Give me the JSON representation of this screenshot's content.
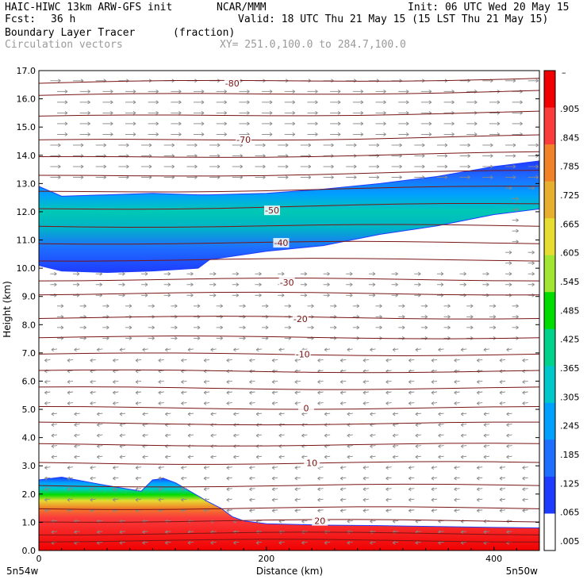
{
  "header": {
    "title_left": "HAIC-HIWC 13km ARW-GFS init",
    "org": "NCAR/MMM",
    "init": "Init: 06 UTC Wed 20 May 15",
    "fcst_label": "Fcst:",
    "fcst_value": "36 h",
    "valid": "Valid: 18 UTC Thu 21 May 15 (15 LST Thu 21 May 15)",
    "field1": "Boundary Layer Tracer",
    "field1_units": "(fraction)",
    "field2": "Circulation vectors",
    "xy": "XY= 251.0,100.0 to 284.7,100.0"
  },
  "chart_data": {
    "type": "heatmap",
    "xlabel": "Distance (km)",
    "ylabel": "Height (km)",
    "xlim": [
      0,
      440
    ],
    "ylim": [
      0,
      17
    ],
    "x_ticks": [
      0,
      200,
      400
    ],
    "y_ticks": [
      "0.0",
      "1.0",
      "2.0",
      "3.0",
      "4.0",
      "5.0",
      "6.0",
      "7.0",
      "8.0",
      "9.0",
      "10.0",
      "11.0",
      "12.0",
      "13.0",
      "14.0",
      "15.0",
      "16.0",
      "17.0"
    ],
    "x_endpoints": [
      "5n54w",
      "5n50w"
    ],
    "colorbar": {
      "labels": [
        ".005",
        ".065",
        ".125",
        ".185",
        ".245",
        ".305",
        ".365",
        ".425",
        ".485",
        ".545",
        ".605",
        ".665",
        ".725",
        ".785",
        ".845",
        ".905"
      ],
      "top_label": "–",
      "colors": [
        "#ffffff",
        "#1e3cff",
        "#1e6eff",
        "#00a0ff",
        "#00c8c8",
        "#00d28c",
        "#00dc00",
        "#a0e632",
        "#e6dc32",
        "#e6af2d",
        "#f08228",
        "#fa3c3c",
        "#f00000"
      ]
    },
    "isotherm_labels": [
      {
        "label": "-80",
        "x": 170,
        "y": 16.55
      },
      {
        "label": "-70",
        "x": 180,
        "y": 14.55
      },
      {
        "label": "-50",
        "x": 205,
        "y": 12.05
      },
      {
        "label": "-40",
        "x": 213,
        "y": 10.9
      },
      {
        "label": "-30",
        "x": 218,
        "y": 9.5
      },
      {
        "label": "-20",
        "x": 230,
        "y": 8.2
      },
      {
        "label": "-10",
        "x": 232,
        "y": 6.95
      },
      {
        "label": "0",
        "x": 235,
        "y": 5.05
      },
      {
        "label": "10",
        "x": 240,
        "y": 3.1
      },
      {
        "label": "20",
        "x": 247,
        "y": 1.05
      }
    ],
    "isotherm_heights": [
      16.55,
      16.1,
      15.35,
      14.5,
      13.9,
      13.25,
      12.7,
      12.1,
      11.5,
      10.9,
      10.3,
      9.6,
      9.1,
      8.25,
      7.55,
      6.95,
      6.35,
      5.75,
      5.05,
      4.5,
      3.75,
      3.1,
      2.3,
      1.5,
      1.05,
      0.6,
      0.35
    ],
    "upper_layer": {
      "x": [
        0,
        20,
        60,
        100,
        140,
        150,
        200,
        250,
        300,
        350,
        400,
        440
      ],
      "top": [
        12.9,
        12.55,
        12.6,
        12.65,
        12.6,
        12.6,
        12.65,
        12.8,
        13.0,
        13.25,
        13.6,
        13.8
      ],
      "bottom": [
        10.1,
        9.9,
        9.85,
        9.9,
        10.0,
        10.3,
        10.6,
        10.8,
        11.2,
        11.5,
        11.9,
        12.1
      ]
    },
    "boundary_layer": {
      "x": [
        0,
        20,
        60,
        90,
        100,
        110,
        120,
        150,
        160,
        170,
        180,
        200,
        250,
        300,
        350,
        400,
        440
      ],
      "top": [
        2.5,
        2.6,
        2.3,
        2.1,
        2.5,
        2.55,
        2.4,
        1.7,
        1.5,
        1.2,
        1.05,
        0.95,
        0.9,
        0.88,
        0.85,
        0.82,
        0.8
      ]
    }
  }
}
